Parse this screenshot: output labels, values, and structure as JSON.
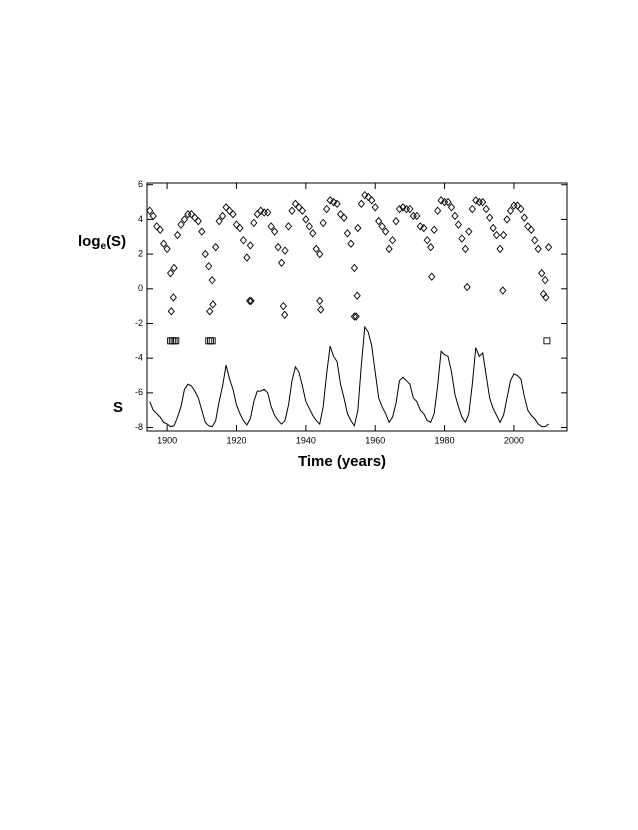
{
  "chart_data": {
    "type": "scatter",
    "ylabel_top": [
      "log",
      "e",
      "(S)"
    ],
    "ylabel_bottom": "S",
    "xlabel": "Time (years)",
    "xlim": [
      1894.2,
      2015.3
    ],
    "ylim": [
      -8.2,
      6.1
    ],
    "xticks": [
      1900,
      1920,
      1940,
      1960,
      1980,
      2000
    ],
    "yticks": [
      -8,
      -6,
      -4,
      -2,
      0,
      2,
      4,
      6
    ],
    "x": [
      1895,
      1896,
      1897,
      1898,
      1899,
      1900,
      1901,
      1902,
      1903,
      1904,
      1905,
      1906,
      1907,
      1908,
      1909,
      1910,
      1911,
      1912,
      1913,
      1914,
      1915,
      1916,
      1917,
      1918,
      1919,
      1920,
      1921,
      1922,
      1923,
      1924,
      1925,
      1926,
      1927,
      1928,
      1929,
      1930,
      1931,
      1932,
      1933,
      1934,
      1935,
      1936,
      1937,
      1938,
      1939,
      1940,
      1941,
      1942,
      1943,
      1944,
      1945,
      1946,
      1947,
      1948,
      1949,
      1950,
      1951,
      1952,
      1953,
      1954,
      1955,
      1956,
      1957,
      1958,
      1959,
      1960,
      1961,
      1962,
      1963,
      1964,
      1965,
      1966,
      1967,
      1968,
      1969,
      1970,
      1971,
      1972,
      1973,
      1974,
      1975,
      1976,
      1977,
      1978,
      1979,
      1980,
      1981,
      1982,
      1983,
      1984,
      1985,
      1986,
      1987,
      1988,
      1989,
      1990,
      1991,
      1992,
      1993,
      1994,
      1995,
      1996,
      1997,
      1998,
      1999,
      2000,
      2001,
      2002,
      2003,
      2004,
      2005,
      2006,
      2007,
      2008,
      2009,
      2010
    ],
    "series": [
      {
        "marker": "diamond",
        "color": "#000000",
        "values": [
          4.5,
          4.2,
          3.6,
          3.4,
          2.6,
          2.3,
          0.9,
          1.2,
          3.1,
          3.7,
          4.0,
          4.3,
          4.3,
          4.1,
          3.9,
          3.3,
          2.0,
          1.3,
          0.5,
          2.4,
          3.9,
          4.2,
          4.7,
          4.5,
          4.3,
          3.7,
          3.5,
          2.8,
          1.8,
          2.5,
          3.8,
          4.3,
          4.5,
          4.4,
          4.4,
          3.6,
          3.3,
          2.4,
          1.5,
          2.2,
          3.6,
          4.5,
          4.9,
          4.7,
          4.5,
          4.0,
          3.6,
          3.2,
          2.3,
          2.0,
          3.8,
          4.6,
          5.1,
          5.0,
          4.9,
          4.3,
          4.1,
          3.2,
          2.6,
          1.2,
          3.5,
          4.9,
          5.4,
          5.3,
          5.1,
          4.7,
          3.9,
          3.6,
          3.3,
          2.3,
          2.8,
          3.9,
          4.6,
          4.7,
          4.6,
          4.6,
          4.2,
          4.2,
          3.6,
          3.5,
          2.8,
          2.4,
          3.4,
          4.5,
          5.1,
          5.0,
          5.0,
          4.7,
          4.2,
          3.7,
          2.9,
          2.3,
          3.3,
          4.6,
          5.1,
          5.0,
          5.0,
          4.6,
          4.1,
          3.5,
          3.1,
          2.3,
          3.1,
          4.0,
          4.5,
          4.8,
          4.8,
          4.6,
          4.1,
          3.6,
          3.4,
          2.8,
          2.3,
          0.9,
          0.5,
          2.4
        ]
      },
      {
        "marker": "diamond",
        "color": "#000000",
        "x": [
          1901.2,
          1901.8,
          1912.3,
          1913.2,
          1923.8,
          1924.2,
          1933.5,
          1933.9,
          1944.0,
          1944.3,
          1954.0,
          1954.5,
          1954.8,
          1976.3,
          1986.5,
          1996.8,
          2008.5,
          2009.2
        ],
        "values": [
          -1.3,
          -0.5,
          -1.3,
          -0.9,
          -0.7,
          -0.7,
          -1.0,
          -1.5,
          -0.7,
          -1.2,
          -1.6,
          -1.6,
          -0.4,
          0.7,
          0.1,
          -0.1,
          -0.3,
          -0.5
        ]
      },
      {
        "marker": "square",
        "color": "#000000",
        "x": [
          1901,
          1901.5,
          1902,
          1902.5,
          1912,
          1912.5,
          1913,
          2009.5
        ],
        "values": [
          -3,
          -3,
          -3,
          -3,
          -3,
          -3,
          -3,
          -3
        ]
      },
      {
        "marker": "line",
        "color": "#000000",
        "values": [
          -6.5,
          -7.0,
          -7.2,
          -7.4,
          -7.7,
          -7.8,
          -7.95,
          -7.9,
          -7.4,
          -6.8,
          -5.8,
          -5.5,
          -5.6,
          -5.9,
          -6.3,
          -7.0,
          -7.7,
          -7.9,
          -7.95,
          -7.6,
          -6.5,
          -5.6,
          -4.4,
          -5.2,
          -5.8,
          -6.7,
          -7.2,
          -7.6,
          -7.85,
          -7.5,
          -6.5,
          -5.9,
          -5.9,
          -5.8,
          -6.0,
          -6.8,
          -7.3,
          -7.6,
          -7.8,
          -7.6,
          -6.7,
          -5.3,
          -4.5,
          -4.8,
          -5.6,
          -6.5,
          -6.9,
          -7.3,
          -7.6,
          -7.8,
          -6.8,
          -4.9,
          -3.3,
          -3.9,
          -4.2,
          -5.5,
          -6.3,
          -7.2,
          -7.6,
          -7.9,
          -7.0,
          -4.4,
          -2.2,
          -2.5,
          -3.3,
          -4.8,
          -6.3,
          -6.8,
          -7.2,
          -7.7,
          -7.4,
          -6.6,
          -5.3,
          -5.1,
          -5.3,
          -5.5,
          -6.3,
          -6.5,
          -7.0,
          -7.2,
          -7.6,
          -7.7,
          -7.2,
          -5.6,
          -3.6,
          -3.8,
          -3.9,
          -4.8,
          -6.1,
          -6.8,
          -7.4,
          -7.7,
          -7.2,
          -5.5,
          -3.4,
          -3.9,
          -3.7,
          -5.0,
          -6.3,
          -6.9,
          -7.3,
          -7.7,
          -7.3,
          -6.3,
          -5.3,
          -4.9,
          -5.0,
          -5.2,
          -6.2,
          -7.0,
          -7.3,
          -7.5,
          -7.8,
          -7.95,
          -7.95,
          -7.8
        ]
      }
    ]
  }
}
